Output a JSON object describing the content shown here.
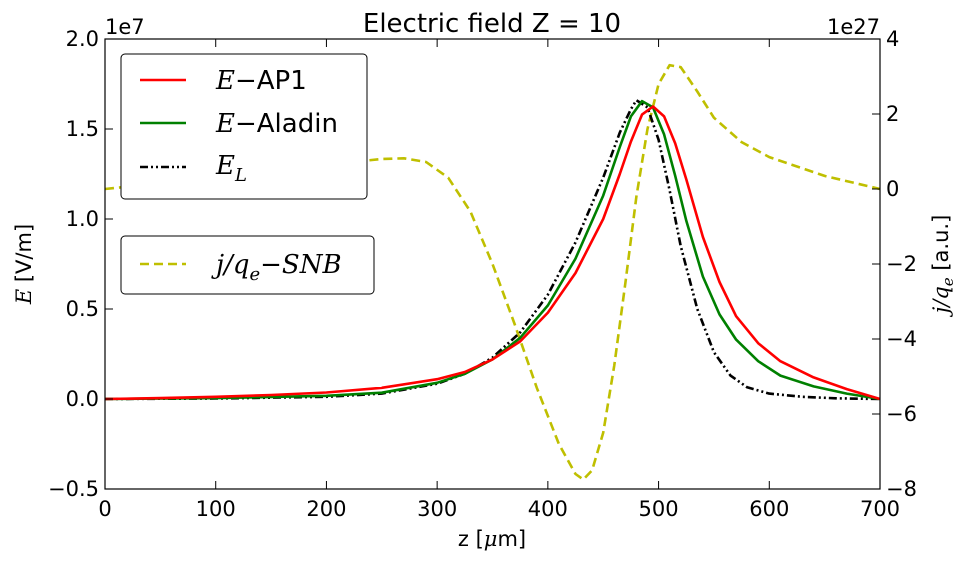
{
  "chart_data": {
    "type": "line",
    "title": "Electric field Z = 10",
    "xlabel": "z [μm]",
    "ylabel": "E [V/m]",
    "ylabel_right": "j/q_e [a.u.]",
    "xlim": [
      0,
      700
    ],
    "ylim": [
      -0.5,
      2.0
    ],
    "ylim_right": [
      -8,
      4
    ],
    "y_multiplier": "1e7",
    "y_right_multiplier": "1e27",
    "x_ticks": [
      "0",
      "100",
      "200",
      "300",
      "400",
      "500",
      "600",
      "700"
    ],
    "y_ticks": [
      "−0.5",
      "0.0",
      "0.5",
      "1.0",
      "1.5",
      "2.0"
    ],
    "y_right_ticks": [
      "−8",
      "−6",
      "−4",
      "−2",
      "0",
      "2",
      "4"
    ],
    "grid": false,
    "legend_position": "top-left",
    "series": [
      {
        "name": "E−AP1",
        "axis": "left",
        "color": "#ff0000",
        "style": "solid",
        "points": [
          [
            0,
            0.0
          ],
          [
            50,
            0.005
          ],
          [
            100,
            0.012
          ],
          [
            150,
            0.022
          ],
          [
            200,
            0.036
          ],
          [
            250,
            0.062
          ],
          [
            300,
            0.11
          ],
          [
            325,
            0.15
          ],
          [
            350,
            0.22
          ],
          [
            375,
            0.32
          ],
          [
            400,
            0.48
          ],
          [
            425,
            0.7
          ],
          [
            450,
            1.0
          ],
          [
            465,
            1.25
          ],
          [
            475,
            1.43
          ],
          [
            485,
            1.58
          ],
          [
            495,
            1.625
          ],
          [
            505,
            1.57
          ],
          [
            515,
            1.42
          ],
          [
            525,
            1.22
          ],
          [
            540,
            0.9
          ],
          [
            555,
            0.65
          ],
          [
            570,
            0.46
          ],
          [
            590,
            0.31
          ],
          [
            610,
            0.21
          ],
          [
            640,
            0.12
          ],
          [
            670,
            0.055
          ],
          [
            700,
            0.0
          ]
        ]
      },
      {
        "name": "E−Aladin",
        "axis": "left",
        "color": "#008000",
        "style": "solid",
        "points": [
          [
            0,
            0.0
          ],
          [
            100,
            0.005
          ],
          [
            200,
            0.018
          ],
          [
            250,
            0.035
          ],
          [
            300,
            0.09
          ],
          [
            325,
            0.14
          ],
          [
            350,
            0.22
          ],
          [
            375,
            0.34
          ],
          [
            400,
            0.52
          ],
          [
            425,
            0.78
          ],
          [
            450,
            1.13
          ],
          [
            465,
            1.4
          ],
          [
            475,
            1.57
          ],
          [
            485,
            1.655
          ],
          [
            495,
            1.62
          ],
          [
            505,
            1.47
          ],
          [
            515,
            1.24
          ],
          [
            525,
            0.99
          ],
          [
            540,
            0.68
          ],
          [
            555,
            0.47
          ],
          [
            570,
            0.33
          ],
          [
            590,
            0.21
          ],
          [
            610,
            0.13
          ],
          [
            640,
            0.07
          ],
          [
            670,
            0.03
          ],
          [
            700,
            0.0
          ]
        ]
      },
      {
        "name": "E_L",
        "axis": "left",
        "color": "#000000",
        "style": "dashdot",
        "points": [
          [
            0,
            0.0
          ],
          [
            100,
            0.003
          ],
          [
            200,
            0.012
          ],
          [
            250,
            0.03
          ],
          [
            300,
            0.085
          ],
          [
            325,
            0.14
          ],
          [
            350,
            0.23
          ],
          [
            375,
            0.37
          ],
          [
            400,
            0.58
          ],
          [
            425,
            0.87
          ],
          [
            450,
            1.23
          ],
          [
            465,
            1.48
          ],
          [
            475,
            1.61
          ],
          [
            480,
            1.66
          ],
          [
            490,
            1.62
          ],
          [
            500,
            1.44
          ],
          [
            510,
            1.16
          ],
          [
            520,
            0.85
          ],
          [
            535,
            0.5
          ],
          [
            550,
            0.26
          ],
          [
            565,
            0.13
          ],
          [
            580,
            0.065
          ],
          [
            600,
            0.03
          ],
          [
            630,
            0.012
          ],
          [
            660,
            0.004
          ],
          [
            700,
            0.0
          ]
        ]
      },
      {
        "name": "j/q_e−SNB",
        "axis": "right",
        "color": "#bfbf00",
        "style": "dashed",
        "points": [
          [
            0,
            0.0
          ],
          [
            50,
            0.15
          ],
          [
            100,
            0.32
          ],
          [
            150,
            0.5
          ],
          [
            200,
            0.65
          ],
          [
            250,
            0.8
          ],
          [
            270,
            0.82
          ],
          [
            290,
            0.72
          ],
          [
            310,
            0.3
          ],
          [
            330,
            -0.6
          ],
          [
            350,
            -2.0
          ],
          [
            370,
            -3.6
          ],
          [
            390,
            -5.3
          ],
          [
            410,
            -6.8
          ],
          [
            425,
            -7.6
          ],
          [
            432,
            -7.75
          ],
          [
            440,
            -7.5
          ],
          [
            450,
            -6.5
          ],
          [
            460,
            -4.7
          ],
          [
            470,
            -2.5
          ],
          [
            480,
            -0.2
          ],
          [
            490,
            1.6
          ],
          [
            500,
            2.8
          ],
          [
            510,
            3.3
          ],
          [
            520,
            3.25
          ],
          [
            535,
            2.6
          ],
          [
            550,
            1.9
          ],
          [
            575,
            1.25
          ],
          [
            600,
            0.85
          ],
          [
            650,
            0.35
          ],
          [
            700,
            0.0
          ]
        ]
      }
    ]
  }
}
